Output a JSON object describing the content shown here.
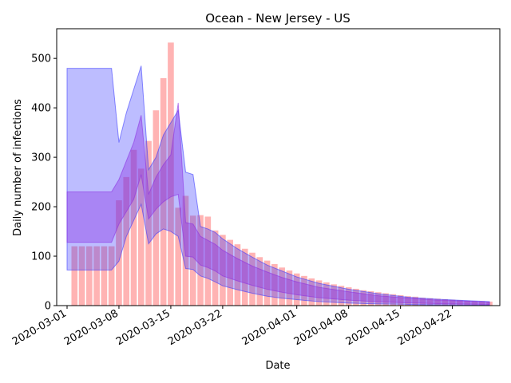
{
  "chart_data": {
    "type": "bar",
    "title": "Ocean - New Jersey - US",
    "xlabel": "Date",
    "ylabel": "Daily number of infections",
    "x_tick_labels": [
      "2020-03-01",
      "2020-03-08",
      "2020-03-15",
      "2020-03-22",
      "2020-04-01",
      "2020-04-08",
      "2020-04-15",
      "2020-04-22"
    ],
    "y_ticks": [
      0,
      100,
      200,
      300,
      400,
      500
    ],
    "ylim": [
      0,
      560
    ],
    "start_date": "2020-03-01",
    "grid": false,
    "colors": {
      "bars": "#ff9999",
      "band": "#3333ff",
      "band_inner": "#8a2be2"
    },
    "bars": [
      {
        "date": "2020-03-02",
        "value": 120
      },
      {
        "date": "2020-03-03",
        "value": 120
      },
      {
        "date": "2020-03-04",
        "value": 120
      },
      {
        "date": "2020-03-05",
        "value": 120
      },
      {
        "date": "2020-03-06",
        "value": 120
      },
      {
        "date": "2020-03-07",
        "value": 120
      },
      {
        "date": "2020-03-08",
        "value": 213
      },
      {
        "date": "2020-03-09",
        "value": 260
      },
      {
        "date": "2020-03-10",
        "value": 315
      },
      {
        "date": "2020-03-11",
        "value": 277
      },
      {
        "date": "2020-03-12",
        "value": 333
      },
      {
        "date": "2020-03-13",
        "value": 395
      },
      {
        "date": "2020-03-14",
        "value": 460
      },
      {
        "date": "2020-03-15",
        "value": 532
      },
      {
        "date": "2020-03-16",
        "value": 198
      },
      {
        "date": "2020-03-17",
        "value": 222
      },
      {
        "date": "2020-03-18",
        "value": 182
      },
      {
        "date": "2020-03-19",
        "value": 183
      },
      {
        "date": "2020-03-20",
        "value": 180
      },
      {
        "date": "2020-03-21",
        "value": 152
      },
      {
        "date": "2020-03-22",
        "value": 143
      },
      {
        "date": "2020-03-23",
        "value": 133
      },
      {
        "date": "2020-03-24",
        "value": 124
      },
      {
        "date": "2020-03-25",
        "value": 115
      },
      {
        "date": "2020-03-26",
        "value": 107
      },
      {
        "date": "2020-03-27",
        "value": 98
      },
      {
        "date": "2020-03-28",
        "value": 91
      },
      {
        "date": "2020-03-29",
        "value": 84
      },
      {
        "date": "2020-03-30",
        "value": 77
      },
      {
        "date": "2020-03-31",
        "value": 71
      },
      {
        "date": "2020-04-01",
        "value": 65
      },
      {
        "date": "2020-04-02",
        "value": 60
      },
      {
        "date": "2020-04-03",
        "value": 55
      },
      {
        "date": "2020-04-04",
        "value": 51
      },
      {
        "date": "2020-04-05",
        "value": 47
      },
      {
        "date": "2020-04-06",
        "value": 43
      },
      {
        "date": "2020-04-07",
        "value": 40
      },
      {
        "date": "2020-04-08",
        "value": 37
      },
      {
        "date": "2020-04-09",
        "value": 34
      },
      {
        "date": "2020-04-10",
        "value": 31
      },
      {
        "date": "2020-04-11",
        "value": 29
      },
      {
        "date": "2020-04-12",
        "value": 27
      },
      {
        "date": "2020-04-13",
        "value": 25
      },
      {
        "date": "2020-04-14",
        "value": 23
      },
      {
        "date": "2020-04-15",
        "value": 21
      },
      {
        "date": "2020-04-16",
        "value": 19
      },
      {
        "date": "2020-04-17",
        "value": 18
      },
      {
        "date": "2020-04-18",
        "value": 16
      },
      {
        "date": "2020-04-19",
        "value": 15
      },
      {
        "date": "2020-04-20",
        "value": 14
      },
      {
        "date": "2020-04-21",
        "value": 13
      },
      {
        "date": "2020-04-22",
        "value": 12
      },
      {
        "date": "2020-04-23",
        "value": 11
      },
      {
        "date": "2020-04-24",
        "value": 10
      },
      {
        "date": "2020-04-25",
        "value": 9
      },
      {
        "date": "2020-04-26",
        "value": 9
      },
      {
        "date": "2020-04-27",
        "value": 8
      }
    ],
    "bands": [
      {
        "role": "outer",
        "points": [
          {
            "date": "2020-03-01",
            "low": 72,
            "high": 480
          },
          {
            "date": "2020-03-07",
            "low": 72,
            "high": 480
          },
          {
            "date": "2020-03-08",
            "low": 90,
            "high": 330
          },
          {
            "date": "2020-03-09",
            "low": 140,
            "high": 390
          },
          {
            "date": "2020-03-11",
            "low": 205,
            "high": 485
          },
          {
            "date": "2020-03-12",
            "low": 125,
            "high": 275
          },
          {
            "date": "2020-03-13",
            "low": 145,
            "high": 300
          },
          {
            "date": "2020-03-14",
            "low": 155,
            "high": 345
          },
          {
            "date": "2020-03-15",
            "low": 150,
            "high": 370
          },
          {
            "date": "2020-03-16",
            "low": 140,
            "high": 395
          },
          {
            "date": "2020-03-17",
            "low": 75,
            "high": 270
          },
          {
            "date": "2020-03-18",
            "low": 73,
            "high": 265
          },
          {
            "date": "2020-03-19",
            "low": 60,
            "high": 160
          },
          {
            "date": "2020-03-20",
            "low": 55,
            "high": 155
          },
          {
            "date": "2020-03-21",
            "low": 48,
            "high": 148
          },
          {
            "date": "2020-03-22",
            "low": 40,
            "high": 135
          },
          {
            "date": "2020-03-24",
            "low": 32,
            "high": 115
          },
          {
            "date": "2020-03-26",
            "low": 25,
            "high": 98
          },
          {
            "date": "2020-03-28",
            "low": 19,
            "high": 82
          },
          {
            "date": "2020-03-30",
            "low": 15,
            "high": 70
          },
          {
            "date": "2020-04-01",
            "low": 12,
            "high": 58
          },
          {
            "date": "2020-04-04",
            "low": 8,
            "high": 45
          },
          {
            "date": "2020-04-08",
            "low": 5,
            "high": 33
          },
          {
            "date": "2020-04-12",
            "low": 3.5,
            "high": 24
          },
          {
            "date": "2020-04-16",
            "low": 2.5,
            "high": 17
          },
          {
            "date": "2020-04-20",
            "low": 1.5,
            "high": 13
          },
          {
            "date": "2020-04-24",
            "low": 1,
            "high": 10
          },
          {
            "date": "2020-04-27",
            "low": 1,
            "high": 8
          }
        ]
      },
      {
        "role": "inner",
        "points": [
          {
            "date": "2020-03-01",
            "low": 128,
            "high": 230
          },
          {
            "date": "2020-03-07",
            "low": 128,
            "high": 230
          },
          {
            "date": "2020-03-08",
            "low": 165,
            "high": 255
          },
          {
            "date": "2020-03-10",
            "low": 215,
            "high": 330
          },
          {
            "date": "2020-03-11",
            "low": 265,
            "high": 385
          },
          {
            "date": "2020-03-12",
            "low": 175,
            "high": 225
          },
          {
            "date": "2020-03-13",
            "low": 195,
            "high": 260
          },
          {
            "date": "2020-03-14",
            "low": 210,
            "high": 285
          },
          {
            "date": "2020-03-15",
            "low": 220,
            "high": 305
          },
          {
            "date": "2020-03-16",
            "low": 225,
            "high": 410
          },
          {
            "date": "2020-03-17",
            "low": 100,
            "high": 168
          },
          {
            "date": "2020-03-18",
            "low": 98,
            "high": 165
          },
          {
            "date": "2020-03-19",
            "low": 82,
            "high": 140
          },
          {
            "date": "2020-03-20",
            "low": 77,
            "high": 132
          },
          {
            "date": "2020-03-21",
            "low": 70,
            "high": 124
          },
          {
            "date": "2020-03-22",
            "low": 60,
            "high": 112
          },
          {
            "date": "2020-03-24",
            "low": 50,
            "high": 95
          },
          {
            "date": "2020-03-26",
            "low": 41,
            "high": 80
          },
          {
            "date": "2020-03-28",
            "low": 33,
            "high": 68
          },
          {
            "date": "2020-03-30",
            "low": 27,
            "high": 57
          },
          {
            "date": "2020-04-01",
            "low": 22,
            "high": 48
          },
          {
            "date": "2020-04-04",
            "low": 16,
            "high": 37
          },
          {
            "date": "2020-04-08",
            "low": 11,
            "high": 28
          },
          {
            "date": "2020-04-12",
            "low": 7.5,
            "high": 20
          },
          {
            "date": "2020-04-16",
            "low": 5.5,
            "high": 15
          },
          {
            "date": "2020-04-20",
            "low": 4,
            "high": 11
          },
          {
            "date": "2020-04-24",
            "low": 3,
            "high": 9
          },
          {
            "date": "2020-04-27",
            "low": 2.5,
            "high": 7
          }
        ]
      }
    ]
  }
}
